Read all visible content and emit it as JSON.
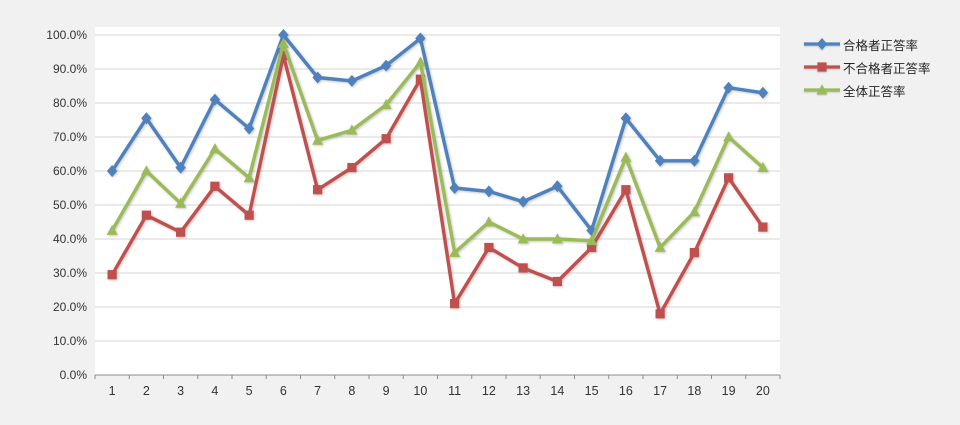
{
  "page": {
    "background_color": "#f1f1f1"
  },
  "chart_data": {
    "type": "line",
    "title": "",
    "categories": [
      "1",
      "2",
      "3",
      "4",
      "5",
      "6",
      "7",
      "8",
      "9",
      "10",
      "11",
      "12",
      "13",
      "14",
      "15",
      "16",
      "17",
      "18",
      "19",
      "20"
    ],
    "series": [
      {
        "name": "合格者正答率",
        "color": "#4f81bd",
        "marker": "diamond",
        "values": [
          60,
          75.5,
          61,
          81,
          72.5,
          100,
          87.5,
          86.5,
          91,
          99,
          55,
          54,
          51,
          55.5,
          42.5,
          75.5,
          63,
          63,
          84.5,
          83
        ]
      },
      {
        "name": "不合格者正答率",
        "color": "#c0504d",
        "marker": "square",
        "values": [
          29.5,
          47,
          42,
          55.5,
          47,
          94,
          54.5,
          61,
          69.5,
          87,
          21,
          37.5,
          31.5,
          27.5,
          37.5,
          54.5,
          18,
          36,
          58,
          43.5
        ]
      },
      {
        "name": "全体正答率",
        "color": "#9bbb59",
        "marker": "triangle",
        "values": [
          42.5,
          60,
          50.5,
          66.5,
          58,
          97.5,
          69,
          72,
          79.5,
          92,
          36,
          45,
          40,
          40,
          39.5,
          64,
          37.5,
          48,
          70,
          61
        ]
      }
    ],
    "xlabel": "",
    "ylabel": "",
    "ylim": [
      0,
      100
    ],
    "ytick_step": 10,
    "ytick_labels": [
      "0.0%",
      "10.0%",
      "20.0%",
      "30.0%",
      "40.0%",
      "50.0%",
      "60.0%",
      "70.0%",
      "80.0%",
      "90.0%",
      "100.0%"
    ],
    "grid": "horizontal",
    "legend_position": "right",
    "colors": {
      "grid": "#d6d6d6",
      "axis": "#8c8c8c",
      "label": "#333333",
      "plot_bg": "#ffffff",
      "page_bg": "#f1f1f1"
    }
  }
}
